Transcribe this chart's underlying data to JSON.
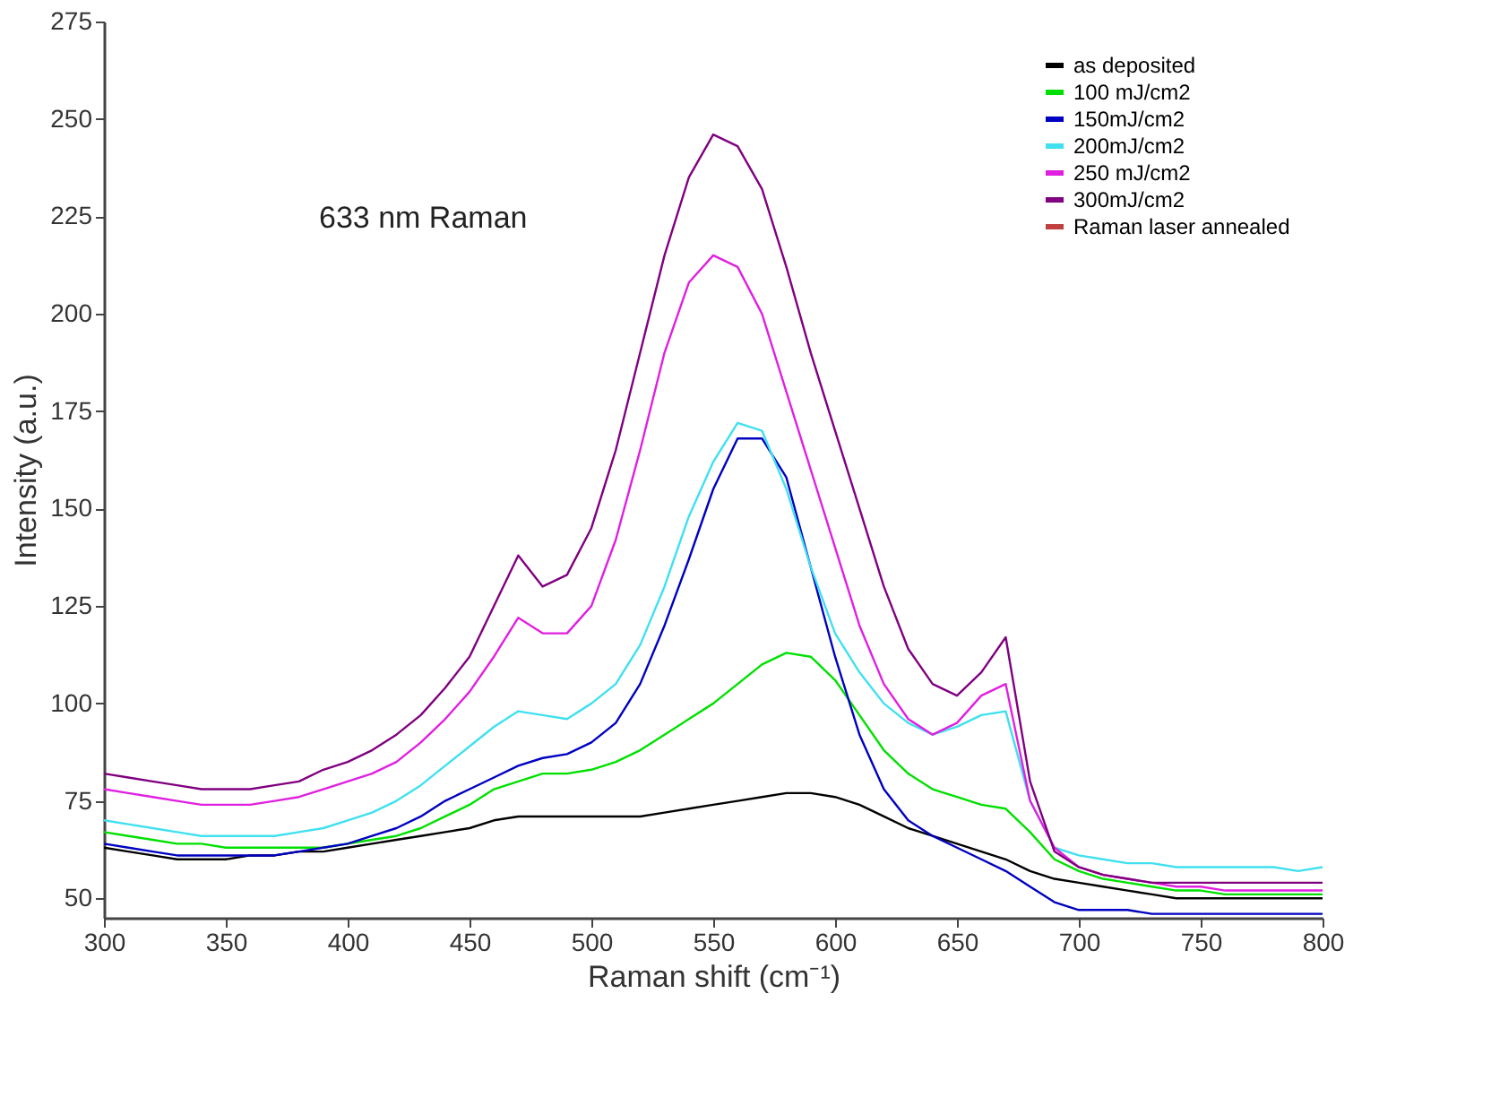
{
  "chart_data": {
    "type": "line",
    "xlabel": "Raman shift (cm⁻¹)",
    "ylabel": "Intensity (a.u.)",
    "annotations": [
      "633 nm Raman"
    ],
    "x": [
      300,
      310,
      320,
      330,
      340,
      350,
      360,
      370,
      380,
      390,
      400,
      410,
      420,
      430,
      440,
      450,
      460,
      470,
      480,
      490,
      500,
      510,
      520,
      530,
      540,
      550,
      560,
      570,
      580,
      590,
      600,
      610,
      620,
      630,
      640,
      650,
      660,
      670,
      680,
      690,
      700,
      710,
      720,
      730,
      740,
      750,
      760,
      770,
      780,
      790,
      800
    ],
    "xlim": [
      300,
      800
    ],
    "xticks": [
      300,
      350,
      400,
      450,
      500,
      550,
      600,
      650,
      700,
      750,
      800
    ],
    "ylim": [
      45,
      275
    ],
    "yticks": [
      50,
      75,
      100,
      125,
      150,
      175,
      200,
      225,
      250,
      275
    ],
    "grid": false,
    "legend": "top right",
    "line_style": "solid",
    "marker": "none",
    "series": [
      {
        "name": "as deposited",
        "color": "#000000",
        "values": [
          63,
          62,
          61,
          60,
          60,
          60,
          61,
          61,
          62,
          62,
          63,
          64,
          65,
          66,
          67,
          68,
          70,
          71,
          71,
          71,
          71,
          71,
          71,
          72,
          73,
          74,
          75,
          76,
          77,
          77,
          76,
          74,
          71,
          68,
          66,
          64,
          62,
          60,
          57,
          55,
          54,
          53,
          52,
          51,
          50,
          50,
          50,
          50,
          50,
          50,
          50
        ]
      },
      {
        "name": "100 mJ/cm2",
        "color": "#00e000",
        "values": [
          67,
          66,
          65,
          64,
          64,
          63,
          63,
          63,
          63,
          63,
          64,
          65,
          66,
          68,
          71,
          74,
          78,
          80,
          82,
          82,
          83,
          85,
          88,
          92,
          96,
          100,
          105,
          110,
          113,
          112,
          106,
          97,
          88,
          82,
          78,
          76,
          74,
          73,
          67,
          60,
          57,
          55,
          54,
          53,
          52,
          52,
          51,
          51,
          51,
          51,
          51
        ]
      },
      {
        "name": "150mJ/cm2",
        "color": "#0000c0",
        "values": [
          64,
          63,
          62,
          61,
          61,
          61,
          61,
          61,
          62,
          63,
          64,
          66,
          68,
          71,
          75,
          78,
          81,
          84,
          86,
          87,
          90,
          95,
          105,
          120,
          137,
          155,
          168,
          168,
          158,
          135,
          112,
          92,
          78,
          70,
          66,
          63,
          60,
          57,
          53,
          49,
          47,
          47,
          47,
          46,
          46,
          46,
          46,
          46,
          46,
          46,
          46
        ]
      },
      {
        "name": "200mJ/cm2",
        "color": "#40e0f0",
        "values": [
          70,
          69,
          68,
          67,
          66,
          66,
          66,
          66,
          67,
          68,
          70,
          72,
          75,
          79,
          84,
          89,
          94,
          98,
          97,
          96,
          100,
          105,
          115,
          130,
          148,
          162,
          172,
          170,
          155,
          135,
          118,
          108,
          100,
          95,
          92,
          94,
          97,
          98,
          75,
          63,
          61,
          60,
          59,
          59,
          58,
          58,
          58,
          58,
          58,
          57,
          58
        ]
      },
      {
        "name": "250 mJ/cm2",
        "color": "#e020e0",
        "values": [
          78,
          77,
          76,
          75,
          74,
          74,
          74,
          75,
          76,
          78,
          80,
          82,
          85,
          90,
          96,
          103,
          112,
          122,
          118,
          118,
          125,
          142,
          165,
          190,
          208,
          215,
          212,
          200,
          180,
          160,
          140,
          120,
          105,
          96,
          92,
          95,
          102,
          105,
          75,
          63,
          58,
          56,
          55,
          54,
          53,
          53,
          52,
          52,
          52,
          52,
          52
        ]
      },
      {
        "name": "300mJ/cm2",
        "color": "#800080",
        "values": [
          82,
          81,
          80,
          79,
          78,
          78,
          78,
          79,
          80,
          83,
          85,
          88,
          92,
          97,
          104,
          112,
          125,
          138,
          130,
          133,
          145,
          165,
          190,
          215,
          235,
          246,
          243,
          232,
          212,
          190,
          170,
          150,
          130,
          114,
          105,
          102,
          108,
          117,
          80,
          62,
          58,
          56,
          55,
          54,
          54,
          54,
          54,
          54,
          54,
          54,
          54
        ]
      },
      {
        "name": "Raman laser annealed",
        "color": "#c04040",
        "values": [
          null,
          null,
          null,
          null,
          null,
          null,
          null,
          null,
          null,
          null,
          null,
          null,
          null,
          null,
          null,
          null,
          null,
          null,
          null,
          null,
          null,
          null,
          null,
          null,
          null,
          null,
          null,
          null,
          null,
          null,
          null,
          null,
          null,
          null,
          null,
          null,
          null,
          null,
          null,
          null,
          null,
          null,
          null,
          null,
          null,
          null,
          null,
          null,
          null,
          null,
          null
        ]
      }
    ]
  }
}
